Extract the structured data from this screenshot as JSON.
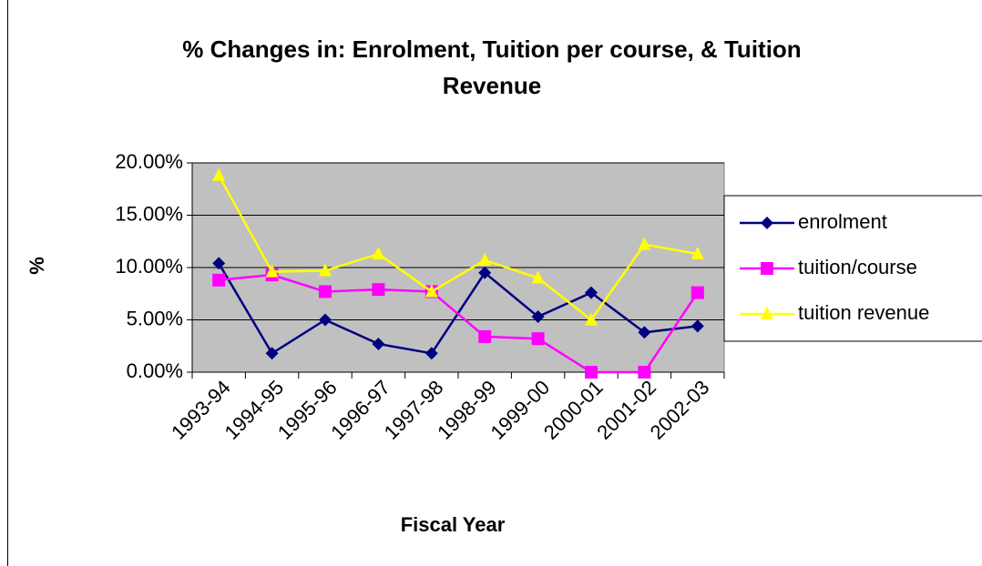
{
  "chart_data": {
    "type": "line",
    "title": "% Changes in: Enrolment, Tuition per course, & Tuition Revenue",
    "x_label": "Fiscal Year",
    "y_label": "%",
    "categories": [
      "1993-94",
      "1994-95",
      "1995-96",
      "1996-97",
      "1997-98",
      "1998-99",
      "1999-00",
      "2000-01",
      "2001-02",
      "2002-03"
    ],
    "series": [
      {
        "name": "enrolment",
        "color": "#000080",
        "marker": "diamond",
        "values": [
          10.4,
          1.8,
          5.0,
          2.7,
          1.8,
          9.5,
          5.3,
          7.6,
          3.8,
          4.4
        ]
      },
      {
        "name": "tuition/course",
        "color": "#ff00ff",
        "marker": "square",
        "values": [
          8.8,
          9.3,
          7.7,
          7.9,
          7.7,
          3.4,
          3.2,
          0,
          0,
          7.6
        ]
      },
      {
        "name": "tuition revenue",
        "color": "#ffff00",
        "marker": "triangle",
        "values": [
          18.8,
          9.6,
          9.7,
          11.3,
          7.7,
          10.7,
          9.0,
          5.0,
          12.2,
          11.3
        ]
      }
    ],
    "ylim": [
      0,
      20
    ],
    "yticks": [
      {
        "value": 0,
        "label": "0.00%"
      },
      {
        "value": 5,
        "label": "5.00%"
      },
      {
        "value": 10,
        "label": "10.00%"
      },
      {
        "value": 15,
        "label": "15.00%"
      },
      {
        "value": 20,
        "label": "20.00%"
      }
    ],
    "grid": true,
    "legend": "right"
  }
}
